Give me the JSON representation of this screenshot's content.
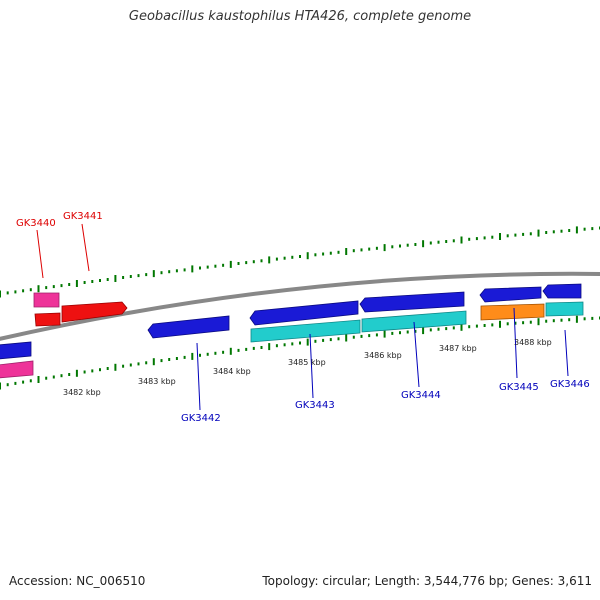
{
  "title": "Geobacillus kaustophilus HTA426, complete genome",
  "footer": {
    "accession": "Accession: NC_006510",
    "summary": "Topology: circular; Length: 3,544,776 bp; Genes: 3,611"
  },
  "scale_labels": [
    {
      "id": "kbp-3482",
      "text": "3482 kbp"
    },
    {
      "id": "kbp-3483",
      "text": "3483 kbp"
    },
    {
      "id": "kbp-3484",
      "text": "3484 kbp"
    },
    {
      "id": "kbp-3485",
      "text": "3485 kbp"
    },
    {
      "id": "kbp-3486",
      "text": "3486 kbp"
    },
    {
      "id": "kbp-3487",
      "text": "3487 kbp"
    },
    {
      "id": "kbp-3488",
      "text": "3488 kbp"
    }
  ],
  "gene_labels": [
    {
      "id": "gk3440",
      "text": "GK3440",
      "color": "#dd0000"
    },
    {
      "id": "gk3441",
      "text": "GK3441",
      "color": "#dd0000"
    },
    {
      "id": "gk3442",
      "text": "GK3442",
      "color": "#0000bb"
    },
    {
      "id": "gk3443",
      "text": "GK3443",
      "color": "#0000bb"
    },
    {
      "id": "gk3444",
      "text": "GK3444",
      "color": "#0000bb"
    },
    {
      "id": "gk3445",
      "text": "GK3445",
      "color": "#0000bb"
    },
    {
      "id": "gk3446",
      "text": "GK3446",
      "color": "#0000bb"
    }
  ],
  "colors": {
    "backbone": "#888888",
    "ticks": "#007700",
    "cds_blue": "#1a1ad6",
    "cds_cyan": "#22cccc",
    "cds_red": "#ee1111",
    "cds_pink": "#ee3399",
    "cds_orange": "#ff8c1a"
  }
}
